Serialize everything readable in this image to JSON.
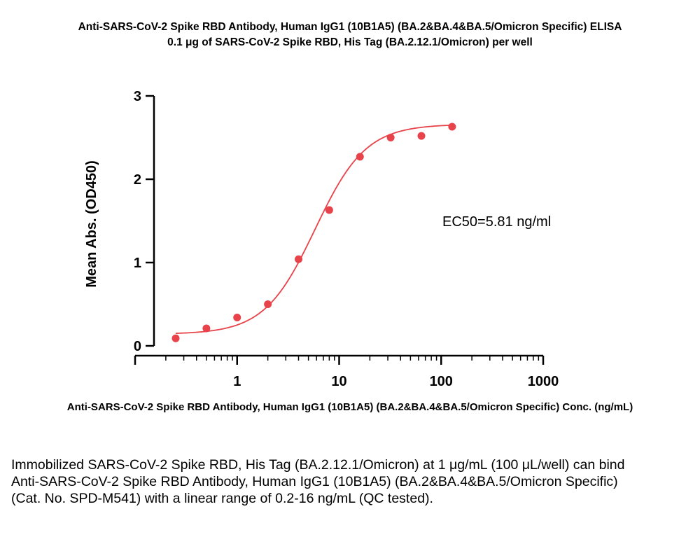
{
  "chart_data": {
    "type": "scatter",
    "title": "Anti-SARS-CoV-2 Spike RBD Antibody, Human IgG1 (10B1A5) (BA.2&BA.4&BA.5/Omicron Specific) ELISA",
    "subtitle": "0.1 μg of SARS-CoV-2 Spike RBD, His Tag (BA.2.12.1/Omicron) per well",
    "xlabel": "Anti-SARS-CoV-2 Spike RBD Antibody, Human IgG1 (10B1A5) (BA.2&BA.4&BA.5/Omicron Specific) Conc. (ng/mL)",
    "ylabel": "Mean Abs. (OD450)",
    "x_scale": "log",
    "xlim": [
      0.1,
      1000
    ],
    "ylim": [
      0,
      3
    ],
    "x_ticks": [
      "1",
      "10",
      "100",
      "1000"
    ],
    "y_ticks": [
      "0",
      "1",
      "2",
      "3"
    ],
    "grid": false,
    "series": [
      {
        "color": "#e8424a",
        "x": [
          0.25,
          0.5,
          1,
          2,
          4,
          8,
          16,
          32,
          64,
          128
        ],
        "y": [
          0.09,
          0.21,
          0.34,
          0.5,
          1.04,
          1.63,
          2.27,
          2.5,
          2.52,
          2.63
        ]
      }
    ],
    "fit": {
      "bottom": 0.14,
      "top": 2.66,
      "ec50": 5.81,
      "hill": 1.75
    },
    "annotation": "EC50=5.81 ng/ml"
  },
  "caption": "Immobilized SARS-CoV-2 Spike RBD, His Tag (BA.2.12.1/Omicron) at 1 μg/mL (100 μL/well) can bind Anti-SARS-CoV-2 Spike RBD Antibody, Human IgG1 (10B1A5) (BA.2&BA.4&BA.5/Omicron Specific) (Cat. No. SPD-M541) with a linear range of 0.2-16 ng/mL (QC tested)."
}
